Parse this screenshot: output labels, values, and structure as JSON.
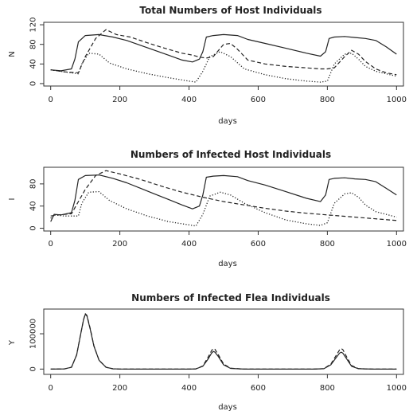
{
  "chart_data": [
    {
      "type": "line",
      "title": "Total Numbers of Host Individuals",
      "xlabel": "days",
      "ylabel": "N",
      "xlim": [
        -20,
        1020
      ],
      "ylim": [
        -5,
        125
      ],
      "xticks": [
        0,
        200,
        400,
        600,
        800,
        1000
      ],
      "xtick_labels": [
        "0",
        "200",
        "400",
        "600",
        "800",
        "1000"
      ],
      "yticks": [
        0,
        40,
        80,
        120
      ],
      "ytick_labels": [
        "0",
        "40",
        "80",
        "120"
      ],
      "grid": false,
      "legend": "none",
      "series": [
        {
          "style": "solid",
          "x": [
            0,
            30,
            60,
            70,
            80,
            100,
            140,
            180,
            220,
            260,
            300,
            340,
            380,
            410,
            430,
            440,
            450,
            470,
            500,
            540,
            570,
            620,
            680,
            740,
            780,
            795,
            805,
            820,
            850,
            880,
            910,
            940,
            970,
            1000
          ],
          "y": [
            28,
            26,
            30,
            50,
            85,
            98,
            100,
            95,
            88,
            78,
            68,
            58,
            48,
            44,
            50,
            65,
            95,
            98,
            100,
            98,
            90,
            82,
            72,
            62,
            56,
            65,
            92,
            95,
            96,
            94,
            92,
            88,
            75,
            60
          ]
        },
        {
          "style": "dashed",
          "x": [
            0,
            40,
            80,
            100,
            130,
            160,
            190,
            230,
            280,
            330,
            380,
            410,
            430,
            450,
            470,
            500,
            520,
            540,
            570,
            620,
            680,
            740,
            780,
            800,
            820,
            850,
            870,
            890,
            910,
            940,
            970,
            1000
          ],
          "y": [
            28,
            24,
            22,
            55,
            92,
            110,
            100,
            95,
            83,
            72,
            62,
            58,
            54,
            52,
            55,
            80,
            82,
            70,
            48,
            40,
            35,
            32,
            30,
            30,
            32,
            55,
            68,
            60,
            45,
            30,
            22,
            18
          ]
        },
        {
          "style": "dotted",
          "x": [
            0,
            40,
            80,
            90,
            110,
            140,
            170,
            220,
            280,
            340,
            400,
            420,
            440,
            460,
            490,
            520,
            560,
            620,
            680,
            740,
            780,
            800,
            820,
            850,
            870,
            890,
            910,
            940,
            970,
            1000
          ],
          "y": [
            28,
            24,
            20,
            40,
            62,
            60,
            42,
            30,
            20,
            12,
            5,
            3,
            25,
            55,
            65,
            55,
            30,
            18,
            10,
            5,
            3,
            5,
            40,
            60,
            62,
            50,
            35,
            25,
            20,
            15
          ]
        }
      ]
    },
    {
      "type": "line",
      "title": "Numbers of Infected Host Individuals",
      "xlabel": "days",
      "ylabel": "I",
      "xlim": [
        -20,
        1020
      ],
      "ylim": [
        -5,
        110
      ],
      "xticks": [
        0,
        200,
        400,
        600,
        800,
        1000
      ],
      "xtick_labels": [
        "0",
        "200",
        "400",
        "600",
        "800",
        "1000"
      ],
      "yticks": [
        0,
        40,
        80
      ],
      "ytick_labels": [
        "0",
        "40",
        "80"
      ],
      "grid": false,
      "legend": "none",
      "series": [
        {
          "style": "solid",
          "x": [
            0,
            10,
            30,
            60,
            70,
            80,
            100,
            140,
            180,
            220,
            260,
            300,
            340,
            380,
            410,
            430,
            440,
            450,
            470,
            500,
            540,
            570,
            620,
            680,
            740,
            780,
            795,
            805,
            820,
            850,
            880,
            910,
            940,
            970,
            1000
          ],
          "y": [
            12,
            25,
            24,
            28,
            50,
            88,
            95,
            96,
            90,
            82,
            72,
            62,
            52,
            42,
            35,
            40,
            60,
            92,
            94,
            95,
            93,
            86,
            78,
            66,
            54,
            48,
            60,
            88,
            90,
            91,
            89,
            88,
            84,
            72,
            60
          ]
        },
        {
          "style": "dashed",
          "x": [
            0,
            20,
            60,
            100,
            130,
            160,
            200,
            260,
            320,
            380,
            440,
            500,
            560,
            620,
            680,
            740,
            800,
            860,
            920,
            980,
            1000
          ],
          "y": [
            22,
            24,
            26,
            70,
            95,
            104,
            98,
            88,
            76,
            65,
            56,
            48,
            42,
            36,
            31,
            27,
            24,
            21,
            18,
            15,
            14
          ]
        },
        {
          "style": "dotted",
          "x": [
            0,
            10,
            40,
            80,
            90,
            110,
            140,
            170,
            220,
            280,
            340,
            400,
            420,
            440,
            460,
            490,
            520,
            560,
            620,
            680,
            740,
            780,
            800,
            820,
            850,
            870,
            890,
            910,
            940,
            970,
            1000
          ],
          "y": [
            18,
            24,
            22,
            22,
            45,
            65,
            66,
            50,
            35,
            22,
            12,
            6,
            4,
            25,
            58,
            65,
            60,
            45,
            28,
            15,
            8,
            5,
            10,
            45,
            62,
            64,
            56,
            42,
            30,
            25,
            20
          ]
        }
      ]
    },
    {
      "type": "line",
      "title": "Numbers of Infected Flea Individuals",
      "xlabel": "days",
      "ylabel": "Y",
      "xlim": [
        -20,
        1020
      ],
      "ylim": [
        -15000,
        170000
      ],
      "xticks": [
        0,
        200,
        400,
        600,
        800,
        1000
      ],
      "xtick_labels": [
        "0",
        "200",
        "400",
        "600",
        "800",
        "1000"
      ],
      "yticks": [
        0,
        100000
      ],
      "ytick_labels": [
        "0",
        "100000"
      ],
      "grid": false,
      "legend": "none",
      "series": [
        {
          "style": "solid",
          "x": [
            0,
            40,
            60,
            75,
            85,
            95,
            100,
            105,
            115,
            125,
            140,
            160,
            180,
            200,
            240,
            280,
            320,
            360,
            400,
            420,
            440,
            455,
            465,
            470,
            475,
            485,
            500,
            520,
            560,
            600,
            640,
            680,
            720,
            760,
            790,
            810,
            825,
            835,
            840,
            845,
            855,
            870,
            890,
            930,
            970,
            1000
          ],
          "y": [
            0,
            500,
            5000,
            40000,
            90000,
            140000,
            155000,
            150000,
            110000,
            65000,
            25000,
            5000,
            800,
            100,
            0,
            0,
            0,
            0,
            0,
            500,
            8000,
            28000,
            45000,
            50000,
            48000,
            35000,
            12000,
            2000,
            0,
            0,
            0,
            0,
            0,
            0,
            1000,
            12000,
            32000,
            45000,
            48000,
            45000,
            30000,
            8000,
            1000,
            0,
            0,
            0
          ]
        },
        {
          "style": "dashed",
          "x": [
            0,
            40,
            60,
            75,
            85,
            95,
            100,
            105,
            115,
            125,
            140,
            160,
            180,
            200,
            240,
            280,
            320,
            360,
            400,
            420,
            440,
            455,
            465,
            470,
            475,
            485,
            500,
            520,
            560,
            600,
            640,
            680,
            720,
            760,
            790,
            810,
            825,
            835,
            840,
            845,
            855,
            870,
            890,
            930,
            970,
            1000
          ],
          "y": [
            0,
            500,
            5000,
            40000,
            90000,
            140000,
            157000,
            152000,
            112000,
            66000,
            25000,
            5000,
            800,
            100,
            0,
            0,
            0,
            0,
            0,
            500,
            9000,
            33000,
            52000,
            58000,
            56000,
            40000,
            14000,
            2500,
            0,
            0,
            0,
            0,
            0,
            0,
            1200,
            14000,
            38000,
            54000,
            58000,
            55000,
            36000,
            10000,
            1200,
            0,
            0,
            0
          ]
        }
      ]
    }
  ]
}
